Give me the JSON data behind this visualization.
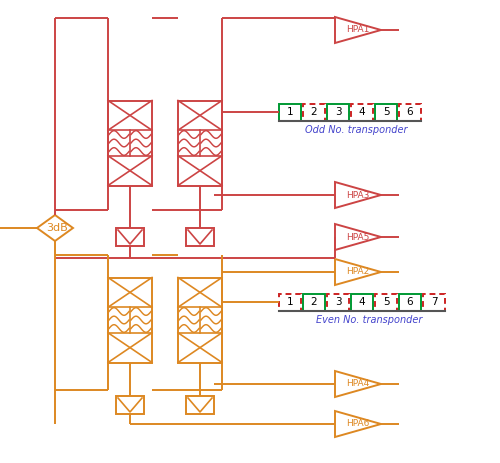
{
  "bg": "#ffffff",
  "rc": "#cc4444",
  "oc": "#dd8822",
  "bc": "#4444cc",
  "gc": "#009933",
  "rdc": "#cc2222",
  "odd_nums": [
    1,
    2,
    3,
    4,
    5,
    6
  ],
  "odd_solid": [
    1,
    3,
    5
  ],
  "even_nums": [
    1,
    2,
    3,
    4,
    5,
    6,
    7
  ],
  "even_solid": [
    2,
    4,
    6
  ],
  "odd_label": "Odd No. transponder",
  "even_label": "Even No. transponder",
  "coupler_label": "3dB",
  "hpa_red": [
    "HPA1",
    "HPA3",
    "HPA5"
  ],
  "hpa_orange": [
    "HPA2",
    "HPA4",
    "HPA6"
  ]
}
